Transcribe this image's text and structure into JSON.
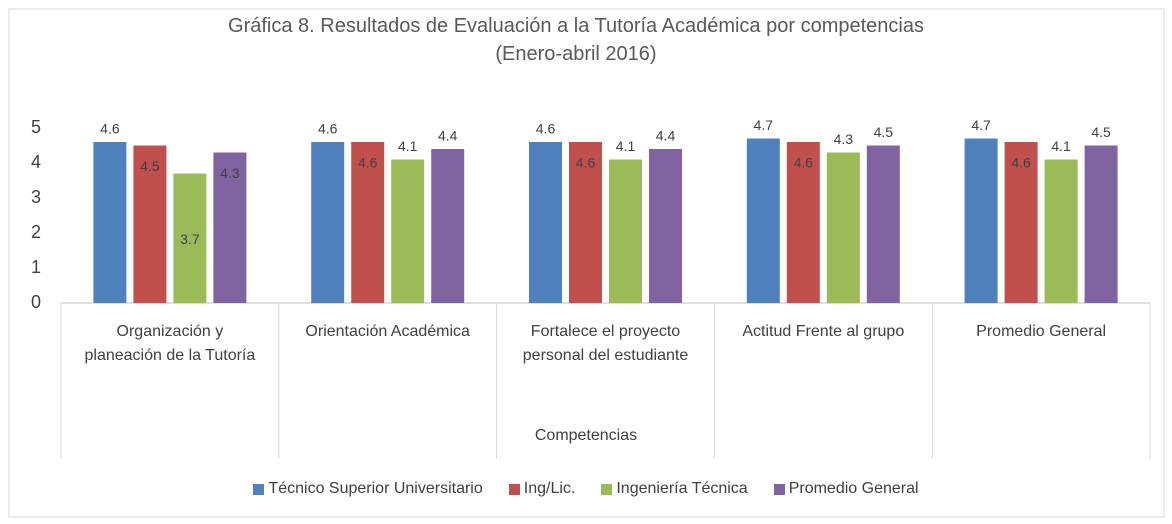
{
  "chart_data": {
    "type": "bar",
    "title": "Gráfica 8. Resultados de Evaluación a la Tutoría Académica por competencias (Enero-abril 2016)",
    "x_label": "Competencias",
    "categories": [
      "Organización y planeación de la Tutoría",
      "Orientación Académica",
      "Fortalece el proyecto personal del estudiante",
      "Actitud Frente al grupo",
      "Promedio General"
    ],
    "series": [
      {
        "name": "Técnico  Superior Universitario",
        "color": "#4f81bd",
        "values": [
          4.6,
          4.6,
          4.6,
          4.7,
          4.7
        ]
      },
      {
        "name": "Ing/Lic.",
        "color": "#c0504d",
        "values": [
          4.5,
          4.6,
          4.6,
          4.6,
          4.6
        ]
      },
      {
        "name": "Ingeniería Técnica",
        "color": "#9bbb59",
        "values": [
          3.7,
          4.1,
          4.1,
          4.3,
          4.1
        ]
      },
      {
        "name": "Promedio  General",
        "color": "#8064a2",
        "values": [
          4.3,
          4.4,
          4.4,
          4.5,
          4.5
        ]
      }
    ],
    "ylim": [
      0,
      5
    ],
    "yticks": [
      0,
      1,
      2,
      3,
      4,
      5
    ],
    "grid": false,
    "legend": "bottom"
  }
}
